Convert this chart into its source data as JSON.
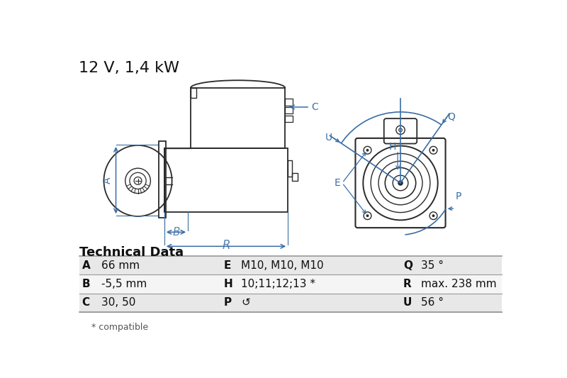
{
  "title": "12 V, 1,4 kW",
  "tech_data_title": "Technical Data",
  "table_rows": [
    [
      "A",
      "66 mm",
      "E",
      "M10, M10, M10",
      "Q",
      "35 °"
    ],
    [
      "B",
      "-5,5 mm",
      "H",
      "10;11;12;13 *",
      "R",
      "max. 238 mm"
    ],
    [
      "C",
      "30, 50",
      "P",
      "↺",
      "U",
      "56 °"
    ]
  ],
  "footnote": "* compatible",
  "bg_color": "#ffffff",
  "row_bg_even": "#e8e8e8",
  "row_bg_odd": "#f5f5f5",
  "dim_color": "#3a6ea5",
  "line_color": "#2a2a2a",
  "title_fontsize": 16,
  "table_label_fontsize": 11,
  "table_value_fontsize": 11
}
